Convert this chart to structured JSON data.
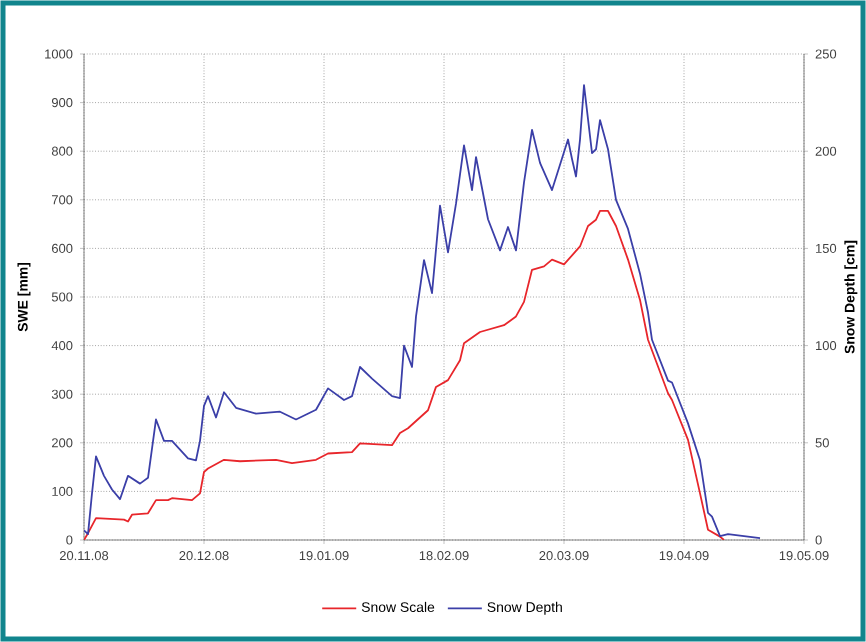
{
  "chart_data": {
    "type": "line",
    "ylabel": "SWE [mm]",
    "y2label": "Snow Depth [cm]",
    "xlim": [
      "2008-11-20",
      "2009-05-19"
    ],
    "xticks": [
      {
        "value": "2008-11-20",
        "label": "20.11.08"
      },
      {
        "value": "2008-12-20",
        "label": "20.12.08"
      },
      {
        "value": "2009-01-19",
        "label": "19.01.09"
      },
      {
        "value": "2009-02-18",
        "label": "18.02.09"
      },
      {
        "value": "2009-03-20",
        "label": "20.03.09"
      },
      {
        "value": "2009-04-19",
        "label": "19.04.09"
      },
      {
        "value": "2009-05-19",
        "label": "19.05.09"
      }
    ],
    "ylim": [
      0,
      1000
    ],
    "yticks": [
      0,
      100,
      200,
      300,
      400,
      500,
      600,
      700,
      800,
      900,
      1000
    ],
    "y2lim": [
      0,
      250
    ],
    "y2ticks": [
      0,
      50,
      100,
      150,
      200,
      250
    ],
    "grid": true,
    "legend": "bottom",
    "series": [
      {
        "name": "Snow Scale",
        "color": "#e8262b",
        "x": [
          "2008-11-20",
          "2008-11-21",
          "2008-11-23",
          "2008-11-30",
          "2008-12-01",
          "2008-12-02",
          "2008-12-06",
          "2008-12-08",
          "2008-12-11",
          "2008-12-12",
          "2008-12-17",
          "2008-12-19",
          "2008-12-20",
          "2008-12-21",
          "2008-12-25",
          "2008-12-29",
          "2009-01-07",
          "2009-01-11",
          "2009-01-17",
          "2009-01-20",
          "2009-01-26",
          "2009-01-28",
          "2009-02-05",
          "2009-02-07",
          "2009-02-09",
          "2009-02-14",
          "2009-02-16",
          "2009-02-19",
          "2009-02-22",
          "2009-02-23",
          "2009-02-27",
          "2009-03-05",
          "2009-03-08",
          "2009-03-10",
          "2009-03-12",
          "2009-03-15",
          "2009-03-17",
          "2009-03-20",
          "2009-03-24",
          "2009-03-26",
          "2009-03-28",
          "2009-03-29",
          "2009-03-31",
          "2009-04-02",
          "2009-04-05",
          "2009-04-08",
          "2009-04-10",
          "2009-04-15",
          "2009-04-16",
          "2009-04-20",
          "2009-04-23",
          "2009-04-25",
          "2009-04-28",
          "2009-04-29"
        ],
        "values": [
          0,
          14,
          45,
          42,
          38,
          52,
          55,
          82,
          82,
          86,
          82,
          96,
          140,
          147,
          165,
          162,
          165,
          158,
          165,
          178,
          181,
          199,
          195,
          220,
          230,
          267,
          315,
          329,
          370,
          405,
          428,
          442,
          460,
          490,
          556,
          563,
          577,
          567,
          604,
          646,
          659,
          677,
          677,
          646,
          577,
          494,
          412,
          302,
          288,
          206,
          96,
          21,
          7,
          0
        ]
      },
      {
        "name": "Snow Depth",
        "color": "#3b3fa8",
        "axis": "y2",
        "x": [
          "2008-11-20",
          "2008-11-21",
          "2008-11-22",
          "2008-11-23",
          "2008-11-25",
          "2008-11-27",
          "2008-11-29",
          "2008-12-01",
          "2008-12-04",
          "2008-12-06",
          "2008-12-08",
          "2008-12-10",
          "2008-12-12",
          "2008-12-16",
          "2008-12-18",
          "2008-12-19",
          "2008-12-20",
          "2008-12-21",
          "2008-12-23",
          "2008-12-25",
          "2008-12-28",
          "2009-01-02",
          "2009-01-08",
          "2009-01-12",
          "2009-01-17",
          "2009-01-20",
          "2009-01-24",
          "2009-01-26",
          "2009-01-28",
          "2009-01-31",
          "2009-02-05",
          "2009-02-07",
          "2009-02-08",
          "2009-02-10",
          "2009-02-11",
          "2009-02-13",
          "2009-02-15",
          "2009-02-17",
          "2009-02-19",
          "2009-02-21",
          "2009-02-23",
          "2009-02-25",
          "2009-02-26",
          "2009-03-01",
          "2009-03-04",
          "2009-03-06",
          "2009-03-08",
          "2009-03-10",
          "2009-03-12",
          "2009-03-14",
          "2009-03-17",
          "2009-03-21",
          "2009-03-22",
          "2009-03-23",
          "2009-03-24",
          "2009-03-25",
          "2009-03-27",
          "2009-03-28",
          "2009-03-29",
          "2009-03-31",
          "2009-04-02",
          "2009-04-05",
          "2009-04-08",
          "2009-04-10",
          "2009-04-11",
          "2009-04-15",
          "2009-04-16",
          "2009-04-20",
          "2009-04-23",
          "2009-04-25",
          "2009-04-26",
          "2009-04-28",
          "2009-04-30",
          "2009-05-08"
        ],
        "values": [
          5,
          3,
          24,
          43,
          33,
          26,
          21,
          33,
          29,
          32,
          62,
          51,
          51,
          42,
          41,
          51,
          69,
          74,
          63,
          76,
          68,
          65,
          66,
          62,
          67,
          78,
          72,
          74,
          89,
          83,
          74,
          73,
          100,
          89,
          115,
          144,
          127,
          172,
          148,
          173,
          203,
          180,
          197,
          165,
          149,
          161,
          149,
          184,
          211,
          194,
          180,
          206,
          196,
          187,
          206,
          234,
          199,
          201,
          216,
          201,
          175,
          160,
          137,
          117,
          103,
          82,
          81,
          60,
          41,
          14,
          12,
          2,
          3,
          1
        ]
      }
    ]
  }
}
